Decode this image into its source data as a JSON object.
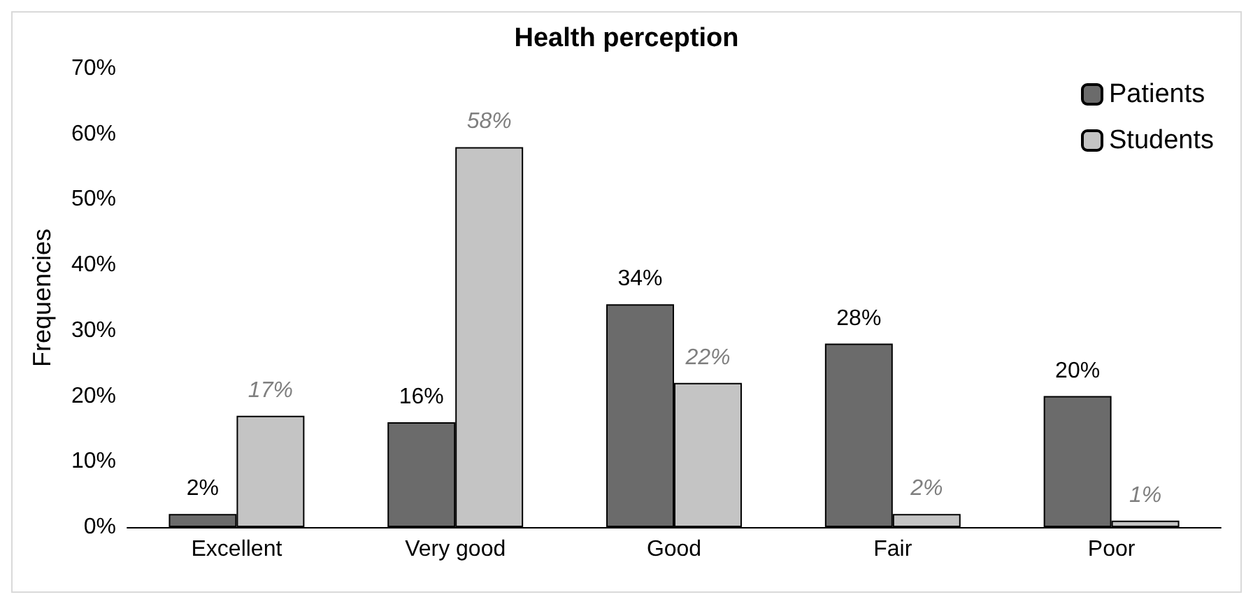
{
  "chart_data": {
    "type": "bar",
    "title": "Health perception",
    "ylabel": "Frequencies",
    "categories": [
      "Excellent",
      "Very good",
      "Good",
      "Fair",
      "Poor"
    ],
    "series": [
      {
        "name": "Patients",
        "color": "#6b6b6b",
        "values": [
          2,
          16,
          34,
          28,
          20
        ],
        "value_labels": [
          "2%",
          "16%",
          "34%",
          "28%",
          "20%"
        ]
      },
      {
        "name": "Students",
        "color": "#c4c4c4",
        "values": [
          17,
          58,
          22,
          2,
          1
        ],
        "value_labels": [
          "17%",
          "58%",
          "22%",
          "2%",
          "1%"
        ]
      }
    ],
    "ylim": [
      0,
      70
    ],
    "yticks": [
      {
        "value": 0,
        "label": "0%"
      },
      {
        "value": 10,
        "label": "10%"
      },
      {
        "value": 20,
        "label": "20%"
      },
      {
        "value": 30,
        "label": "30%"
      },
      {
        "value": 40,
        "label": "40%"
      },
      {
        "value": 50,
        "label": "50%"
      },
      {
        "value": 60,
        "label": "60%"
      },
      {
        "value": 70,
        "label": "70%"
      }
    ],
    "grid": false,
    "legend": "top right"
  }
}
